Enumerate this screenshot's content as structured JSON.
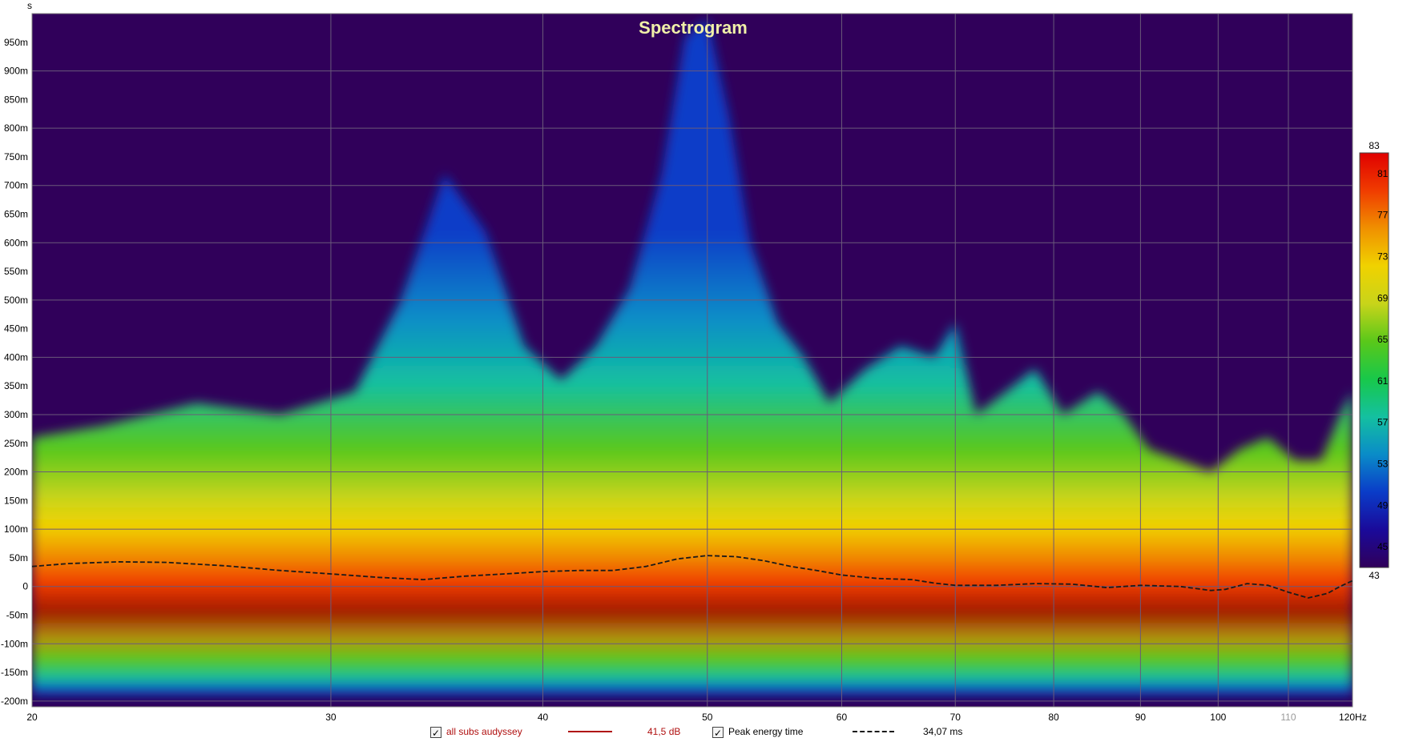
{
  "chart_data": {
    "type": "heatmap",
    "title": "Spectrogram",
    "xlabel": "Hz",
    "ylabel": "s",
    "x_scale": "log",
    "xlim": [
      20,
      120
    ],
    "ylim": [
      -0.21,
      1.0
    ],
    "x_ticks": [
      {
        "v": 20,
        "label": "20"
      },
      {
        "v": 30,
        "label": "30"
      },
      {
        "v": 40,
        "label": "40"
      },
      {
        "v": 50,
        "label": "50"
      },
      {
        "v": 60,
        "label": "60"
      },
      {
        "v": 70,
        "label": "70"
      },
      {
        "v": 80,
        "label": "80"
      },
      {
        "v": 90,
        "label": "90"
      },
      {
        "v": 100,
        "label": "100"
      },
      {
        "v": 110,
        "label": "110",
        "faded": true
      },
      {
        "v": 120,
        "label": "120Hz"
      }
    ],
    "y_ticks": [
      {
        "v": 0.95,
        "label": "950m"
      },
      {
        "v": 0.9,
        "label": "900m"
      },
      {
        "v": 0.85,
        "label": "850m"
      },
      {
        "v": 0.8,
        "label": "800m"
      },
      {
        "v": 0.75,
        "label": "750m"
      },
      {
        "v": 0.7,
        "label": "700m"
      },
      {
        "v": 0.65,
        "label": "650m"
      },
      {
        "v": 0.6,
        "label": "600m"
      },
      {
        "v": 0.55,
        "label": "550m"
      },
      {
        "v": 0.5,
        "label": "500m"
      },
      {
        "v": 0.45,
        "label": "450m"
      },
      {
        "v": 0.4,
        "label": "400m"
      },
      {
        "v": 0.35,
        "label": "350m"
      },
      {
        "v": 0.3,
        "label": "300m"
      },
      {
        "v": 0.25,
        "label": "250m"
      },
      {
        "v": 0.2,
        "label": "200m"
      },
      {
        "v": 0.15,
        "label": "150m"
      },
      {
        "v": 0.1,
        "label": "100m"
      },
      {
        "v": 0.05,
        "label": "50m"
      },
      {
        "v": 0.0,
        "label": "0"
      },
      {
        "v": -0.05,
        "label": "-50m"
      },
      {
        "v": -0.1,
        "label": "-100m"
      },
      {
        "v": -0.15,
        "label": "-150m"
      },
      {
        "v": -0.2,
        "label": "-200m"
      }
    ],
    "colorbar": {
      "min": 43,
      "max": 83,
      "ticks": [
        83,
        81,
        77,
        73,
        69,
        65,
        61,
        57,
        53,
        49,
        45,
        43
      ],
      "colors": [
        "#30005a",
        "#1a0a9a",
        "#0a3cc8",
        "#0a8cc8",
        "#14c0a0",
        "#18c84a",
        "#5ac81a",
        "#c8d41a",
        "#f0d200",
        "#f09000",
        "#f03c00",
        "#e00000"
      ]
    },
    "ridges": [
      {
        "f": 20,
        "top": 0.26
      },
      {
        "f": 22,
        "top": 0.28
      },
      {
        "f": 25,
        "top": 0.32
      },
      {
        "f": 28,
        "top": 0.3
      },
      {
        "f": 31,
        "top": 0.34
      },
      {
        "f": 33,
        "top": 0.5
      },
      {
        "f": 35,
        "top": 0.72
      },
      {
        "f": 37,
        "top": 0.62
      },
      {
        "f": 39,
        "top": 0.42
      },
      {
        "f": 41,
        "top": 0.36
      },
      {
        "f": 43,
        "top": 0.42
      },
      {
        "f": 45,
        "top": 0.52
      },
      {
        "f": 47,
        "top": 0.72
      },
      {
        "f": 48.5,
        "top": 0.96
      },
      {
        "f": 50,
        "top": 0.99
      },
      {
        "f": 51.5,
        "top": 0.82
      },
      {
        "f": 53,
        "top": 0.6
      },
      {
        "f": 55,
        "top": 0.46
      },
      {
        "f": 57,
        "top": 0.4
      },
      {
        "f": 59,
        "top": 0.32
      },
      {
        "f": 62,
        "top": 0.38
      },
      {
        "f": 65,
        "top": 0.42
      },
      {
        "f": 68,
        "top": 0.4
      },
      {
        "f": 70,
        "top": 0.46
      },
      {
        "f": 72,
        "top": 0.3
      },
      {
        "f": 75,
        "top": 0.34
      },
      {
        "f": 78,
        "top": 0.38
      },
      {
        "f": 81,
        "top": 0.3
      },
      {
        "f": 85,
        "top": 0.34
      },
      {
        "f": 88,
        "top": 0.3
      },
      {
        "f": 91,
        "top": 0.24
      },
      {
        "f": 95,
        "top": 0.22
      },
      {
        "f": 99,
        "top": 0.2
      },
      {
        "f": 103,
        "top": 0.24
      },
      {
        "f": 107,
        "top": 0.26
      },
      {
        "f": 111,
        "top": 0.22
      },
      {
        "f": 115,
        "top": 0.22
      },
      {
        "f": 118,
        "top": 0.3
      },
      {
        "f": 120,
        "top": 0.34
      }
    ],
    "peak_energy_time": {
      "name": "Peak energy time",
      "points": [
        {
          "f": 20,
          "t": 0.035
        },
        {
          "f": 21,
          "t": 0.04
        },
        {
          "f": 22.5,
          "t": 0.043
        },
        {
          "f": 24,
          "t": 0.042
        },
        {
          "f": 26,
          "t": 0.036
        },
        {
          "f": 28,
          "t": 0.028
        },
        {
          "f": 30,
          "t": 0.022
        },
        {
          "f": 32,
          "t": 0.016
        },
        {
          "f": 34,
          "t": 0.012
        },
        {
          "f": 36,
          "t": 0.018
        },
        {
          "f": 38,
          "t": 0.022
        },
        {
          "f": 40,
          "t": 0.026
        },
        {
          "f": 42,
          "t": 0.028
        },
        {
          "f": 44,
          "t": 0.028
        },
        {
          "f": 46,
          "t": 0.035
        },
        {
          "f": 48,
          "t": 0.048
        },
        {
          "f": 50,
          "t": 0.054
        },
        {
          "f": 52,
          "t": 0.052
        },
        {
          "f": 54,
          "t": 0.045
        },
        {
          "f": 56,
          "t": 0.035
        },
        {
          "f": 58,
          "t": 0.028
        },
        {
          "f": 60,
          "t": 0.02
        },
        {
          "f": 63,
          "t": 0.014
        },
        {
          "f": 66,
          "t": 0.012
        },
        {
          "f": 68,
          "t": 0.006
        },
        {
          "f": 70,
          "t": 0.002
        },
        {
          "f": 74,
          "t": 0.002
        },
        {
          "f": 78,
          "t": 0.005
        },
        {
          "f": 82,
          "t": 0.004
        },
        {
          "f": 86,
          "t": -0.002
        },
        {
          "f": 90,
          "t": 0.002
        },
        {
          "f": 95,
          "t": 0.0
        },
        {
          "f": 99,
          "t": -0.007
        },
        {
          "f": 101,
          "t": -0.005
        },
        {
          "f": 104,
          "t": 0.005
        },
        {
          "f": 107,
          "t": 0.002
        },
        {
          "f": 110,
          "t": -0.01
        },
        {
          "f": 113,
          "t": -0.02
        },
        {
          "f": 116,
          "t": -0.012
        },
        {
          "f": 118,
          "t": 0.0
        },
        {
          "f": 120,
          "t": 0.01
        }
      ]
    },
    "colors": {
      "background": "#30005a",
      "title": "#f0f0a8",
      "grid": "#6a5a7a",
      "peak_line": "#1a1a1a",
      "series_line": "#b01010"
    }
  },
  "legend": [
    {
      "label": "all subs audyssey",
      "value": "41,5 dB",
      "style": "solid",
      "color": "#b01010",
      "label_color": "#b01010",
      "value_color": "#b01010"
    },
    {
      "label": "Peak energy time",
      "value": "34,07 ms",
      "style": "dashed",
      "color": "#1a1a1a",
      "label_color": "#000000",
      "value_color": "#000000"
    }
  ]
}
